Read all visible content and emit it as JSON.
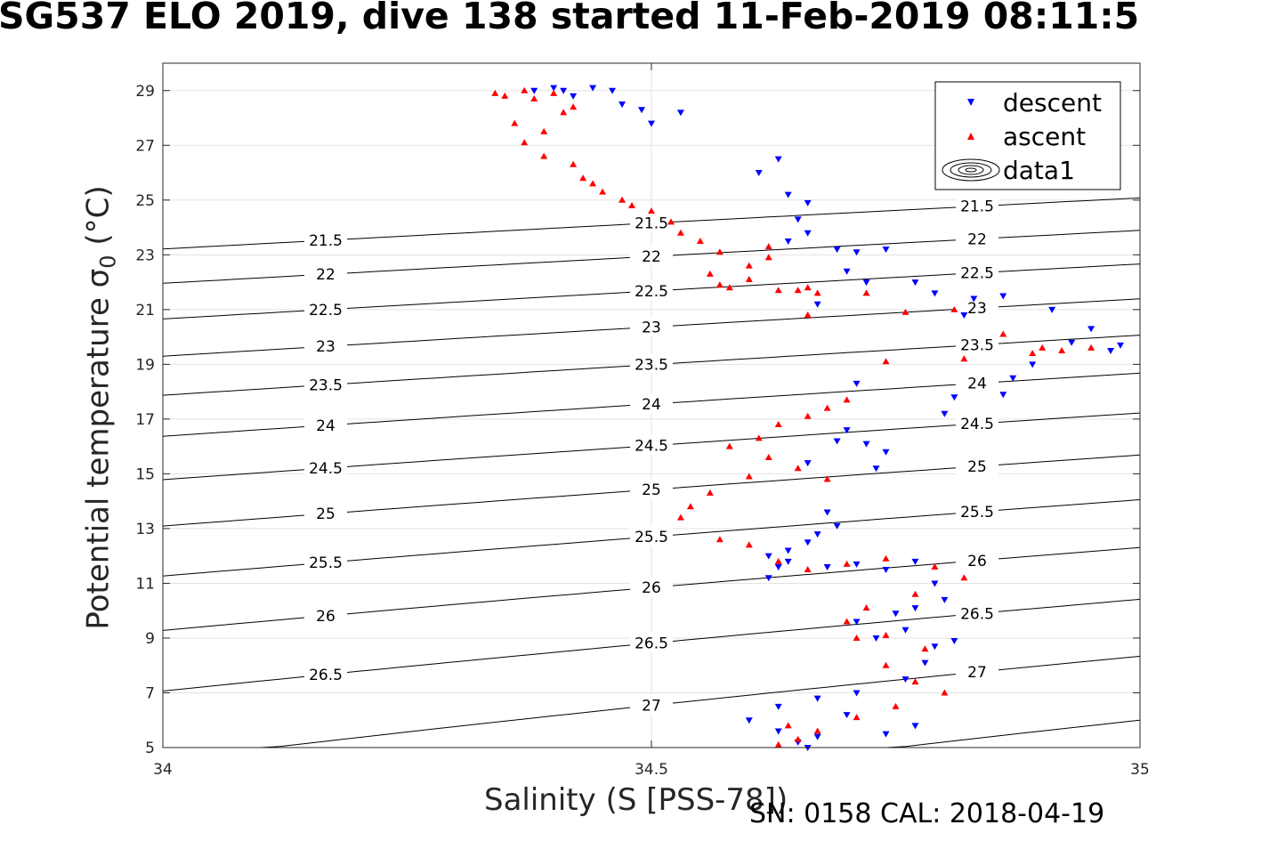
{
  "title": "SG537 ELO 2019, dive 138 started 11-Feb-2019 08:11:5",
  "ylabel_main": "Potential temperature σ",
  "ylabel_sub": "0",
  "ylabel_unit": " (°C)",
  "xlabel": "Salinity (S [PSS-78])",
  "cal_text": "SN: 0158  CAL: 2018-04-19",
  "colors": {
    "descent": "#0000ff",
    "ascent": "#ff0000",
    "contour": "#000000",
    "grid": "#e3e3e3"
  },
  "chart_data": {
    "type": "scatter",
    "xlim": [
      34,
      35
    ],
    "ylim": [
      5,
      30
    ],
    "xticks": [
      "34",
      "34.5",
      "35"
    ],
    "yticks": [
      "5",
      "7",
      "9",
      "11",
      "13",
      "15",
      "17",
      "19",
      "21",
      "23",
      "25",
      "27",
      "29"
    ],
    "grid": true,
    "legend_position": "top-right",
    "legend": [
      "descent",
      "ascent",
      "data1"
    ],
    "contour_levels": [
      "21.5",
      "22",
      "22.5",
      "23",
      "23.5",
      "24",
      "24.5",
      "25",
      "25.5",
      "26",
      "26.5",
      "27",
      "27.5"
    ],
    "series": [
      {
        "name": "descent",
        "marker": "triangle-down",
        "x": [
          34.38,
          34.4,
          34.41,
          34.42,
          34.44,
          34.46,
          34.47,
          34.49,
          34.5,
          34.53,
          34.61,
          34.63,
          34.64,
          34.66,
          34.65,
          34.66,
          34.64,
          34.69,
          34.7,
          34.72,
          34.67,
          34.71,
          34.77,
          34.74,
          34.79,
          34.83,
          34.82,
          34.86,
          34.91,
          34.95,
          34.93,
          34.97,
          34.98,
          34.89,
          34.87,
          34.86,
          34.81,
          34.8,
          34.71,
          34.69,
          34.72,
          34.74,
          34.73,
          34.7,
          34.66,
          34.68,
          34.69,
          34.67,
          34.62,
          34.64,
          34.63,
          34.66,
          34.64,
          34.62,
          34.68,
          34.71,
          34.74,
          34.77,
          34.79,
          34.8,
          34.77,
          34.75,
          34.71,
          34.73,
          34.76,
          34.79,
          34.81,
          34.78,
          34.76,
          34.71,
          34.67,
          34.63,
          34.6,
          34.63,
          34.67,
          34.74,
          34.77,
          34.7,
          34.65,
          34.66
        ],
        "y": [
          29.0,
          29.1,
          29.0,
          28.8,
          29.1,
          29.0,
          28.5,
          28.3,
          27.8,
          28.2,
          26.0,
          26.5,
          25.2,
          24.9,
          24.3,
          23.8,
          23.5,
          23.2,
          22.4,
          22.0,
          21.2,
          23.1,
          22.0,
          23.2,
          21.6,
          21.4,
          20.8,
          21.5,
          21.0,
          20.3,
          19.8,
          19.5,
          19.7,
          19.0,
          18.5,
          17.9,
          17.8,
          17.2,
          18.3,
          16.2,
          16.1,
          15.8,
          15.2,
          16.6,
          15.4,
          13.6,
          13.1,
          12.8,
          12.0,
          12.2,
          11.6,
          12.5,
          11.8,
          11.2,
          11.6,
          11.7,
          11.5,
          11.8,
          11.0,
          10.4,
          10.1,
          9.9,
          9.6,
          9.0,
          9.3,
          8.7,
          8.9,
          8.1,
          7.5,
          7.0,
          6.8,
          6.5,
          6.0,
          5.6,
          5.4,
          5.5,
          5.8,
          6.2,
          5.2,
          5.0
        ]
      },
      {
        "name": "ascent",
        "marker": "triangle-up",
        "x": [
          34.34,
          34.35,
          34.37,
          34.38,
          34.4,
          34.42,
          34.36,
          34.39,
          34.41,
          34.37,
          34.39,
          34.42,
          34.43,
          34.44,
          34.45,
          34.47,
          34.48,
          34.5,
          34.52,
          34.53,
          34.55,
          34.57,
          34.6,
          34.56,
          34.58,
          34.62,
          34.65,
          34.67,
          34.66,
          34.63,
          34.6,
          34.57,
          34.62,
          34.66,
          34.72,
          34.76,
          34.81,
          34.86,
          34.9,
          34.95,
          34.92,
          34.89,
          34.82,
          34.74,
          34.7,
          34.68,
          34.66,
          34.63,
          34.61,
          34.58,
          34.62,
          34.65,
          34.68,
          34.6,
          34.56,
          34.54,
          34.53,
          34.57,
          34.6,
          34.63,
          34.66,
          34.7,
          34.74,
          34.79,
          34.82,
          34.77,
          34.72,
          34.7,
          34.74,
          34.78,
          34.71,
          34.74,
          34.77,
          34.8,
          34.75,
          34.71,
          34.67,
          34.65,
          34.63,
          34.64
        ],
        "y": [
          28.9,
          28.8,
          29.0,
          28.7,
          28.9,
          28.4,
          27.8,
          27.5,
          28.2,
          27.1,
          26.6,
          26.3,
          25.8,
          25.6,
          25.3,
          25.0,
          24.8,
          24.6,
          24.2,
          23.8,
          23.5,
          23.1,
          22.6,
          22.3,
          21.8,
          22.9,
          21.7,
          21.6,
          21.8,
          21.7,
          22.1,
          21.9,
          23.3,
          20.8,
          21.6,
          20.9,
          21.0,
          20.1,
          19.6,
          19.6,
          19.5,
          19.4,
          19.2,
          19.1,
          17.7,
          17.4,
          17.1,
          16.8,
          16.3,
          16.0,
          15.6,
          15.2,
          14.8,
          14.9,
          14.3,
          13.8,
          13.4,
          12.6,
          12.4,
          11.8,
          11.5,
          11.7,
          11.9,
          11.6,
          11.2,
          10.6,
          10.1,
          9.6,
          9.1,
          8.6,
          9.0,
          8.0,
          7.4,
          7.0,
          6.5,
          6.1,
          5.6,
          5.3,
          5.1,
          5.8
        ]
      },
      {
        "name": "data1",
        "marker": "contour"
      }
    ]
  }
}
